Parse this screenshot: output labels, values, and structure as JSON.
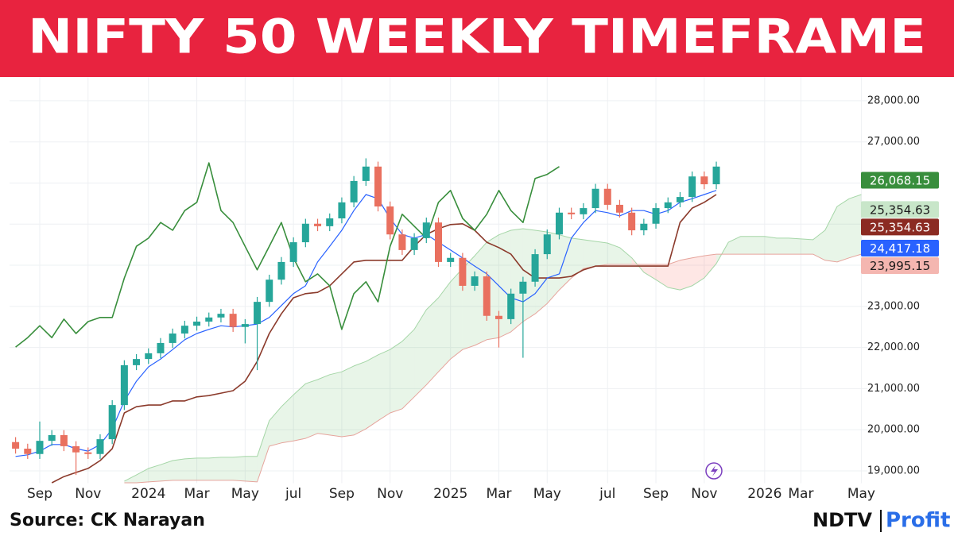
{
  "chart_data": {
    "type": "candlestick",
    "title": "NIFTY 50 WEEKLY TIMEFRAME",
    "source": "Source: CK Narayan",
    "categories": [
      null,
      null,
      "Sep",
      null,
      null,
      null,
      "Nov",
      null,
      null,
      null,
      null,
      "2024",
      null,
      null,
      null,
      "Mar",
      null,
      null,
      null,
      "May",
      null,
      null,
      null,
      "jul",
      null,
      null,
      null,
      "Sep",
      null,
      null,
      null,
      "Nov",
      null,
      null,
      null,
      null,
      "2025",
      null,
      null,
      null,
      "Mar",
      null,
      null,
      null,
      "May",
      null,
      null,
      null,
      null,
      "jul",
      null,
      null,
      null,
      "Sep",
      null,
      null,
      null,
      "Nov",
      null,
      null,
      null,
      null,
      "2026",
      null,
      null,
      "Mar",
      null,
      null,
      null,
      null,
      "May"
    ],
    "ylim": [
      18700,
      28800
    ],
    "yticks": [
      {
        "value": 19000,
        "label": "19,000.00"
      },
      {
        "value": 20000,
        "label": "20,000.00"
      },
      {
        "value": 21000,
        "label": "21,000.00"
      },
      {
        "value": 22000,
        "label": "22,000.00"
      },
      {
        "value": 23000,
        "label": "23,000.00"
      },
      {
        "value": 24000,
        "label": "24,000.00"
      },
      {
        "value": 25000,
        "label": "25,000.00"
      },
      {
        "value": 26000,
        "label": "26,000.00"
      },
      {
        "value": 27000,
        "label": "27,000.00"
      },
      {
        "value": 28000,
        "label": "28,000.00"
      }
    ],
    "grid": true,
    "up_color": "#26a69a",
    "down_color": "#e9705f",
    "open": [
      19700,
      19540,
      19410,
      19730,
      19870,
      19600,
      19450,
      19410,
      19770,
      20600,
      21570,
      21720,
      21860,
      22110,
      22340,
      22530,
      22630,
      22730,
      22820,
      22500,
      22570,
      23110,
      23650,
      24080,
      24560,
      25010,
      24950,
      25140,
      25530,
      26050,
      26400,
      25430,
      24750,
      24370,
      24660,
      25040,
      24080,
      24180,
      23500,
      23730,
      22770,
      22690,
      23310,
      23600,
      24270,
      24750,
      25280,
      25240,
      25390,
      25860,
      25470,
      25280,
      24850,
      25010,
      25390,
      25530,
      25660,
      26160,
      25970,
      null,
      null,
      null,
      null,
      null,
      null,
      null,
      null,
      null,
      null,
      null,
      null
    ],
    "high": [
      19820,
      19660,
      20200,
      19990,
      19990,
      19720,
      19570,
      19890,
      20720,
      21690,
      21840,
      21980,
      22230,
      22460,
      22650,
      22750,
      22850,
      22940,
      22940,
      22690,
      23230,
      23770,
      24200,
      24680,
      25130,
      25130,
      25260,
      25650,
      26170,
      26600,
      26520,
      25550,
      24870,
      24780,
      25160,
      25160,
      24300,
      24300,
      23850,
      23850,
      22890,
      23430,
      23720,
      24390,
      24870,
      25400,
      25400,
      25510,
      25980,
      25980,
      25590,
      25400,
      25130,
      25510,
      25650,
      25780,
      26280,
      26280,
      26520,
      null,
      null,
      null,
      null,
      null,
      null,
      null,
      null,
      null,
      null,
      null,
      null
    ],
    "low": [
      19420,
      19290,
      19290,
      19610,
      19480,
      18900,
      19290,
      19290,
      19650,
      20480,
      21450,
      21600,
      21740,
      21990,
      22220,
      22410,
      22510,
      22610,
      22380,
      22100,
      21450,
      22990,
      23530,
      23960,
      24440,
      24830,
      24830,
      25020,
      25410,
      25930,
      25310,
      24630,
      24250,
      24250,
      24540,
      23960,
      23960,
      23380,
      23380,
      22650,
      22000,
      22570,
      21750,
      23480,
      24150,
      24630,
      25120,
      25120,
      25270,
      25350,
      25160,
      24730,
      24730,
      24890,
      25270,
      25410,
      25540,
      25850,
      25850,
      null,
      null,
      null,
      null,
      null,
      null,
      null,
      null,
      null,
      null,
      null,
      null
    ],
    "close": [
      19540,
      19410,
      19730,
      19870,
      19600,
      19450,
      19410,
      19770,
      20600,
      21570,
      21720,
      21860,
      22110,
      22340,
      22530,
      22630,
      22730,
      22820,
      22500,
      22570,
      23110,
      23650,
      24080,
      24560,
      25010,
      24950,
      25140,
      25530,
      26050,
      26400,
      25430,
      24750,
      24370,
      24660,
      25040,
      24080,
      24180,
      23500,
      23730,
      22770,
      22690,
      23310,
      23600,
      24270,
      24750,
      25280,
      25240,
      25390,
      25860,
      25470,
      25280,
      24850,
      25010,
      25390,
      25530,
      25660,
      26160,
      25970,
      26400,
      null,
      null,
      null,
      null,
      null,
      null,
      null,
      null,
      null,
      null,
      null,
      null
    ],
    "lines": [
      {
        "color": "#8b3a2b",
        "values": [
          null,
          null,
          null,
          18710,
          18860,
          18960,
          19060,
          19250,
          19540,
          20410,
          20560,
          20600,
          20600,
          20700,
          20700,
          20800,
          20830,
          20890,
          20950,
          21180,
          21660,
          22340,
          22820,
          23210,
          23310,
          23340,
          23500,
          23790,
          24080,
          24120,
          24120,
          24120,
          24120,
          24460,
          24750,
          24890,
          24990,
          25010,
          24850,
          24560,
          24430,
          24270,
          23890,
          23690,
          23690,
          23690,
          23730,
          23890,
          23980,
          23980,
          23980,
          23980,
          23980,
          23980,
          23980,
          25040,
          25390,
          25530,
          25720,
          null,
          null,
          null,
          null,
          null,
          null,
          null,
          null,
          null,
          null,
          null,
          null
        ]
      },
      {
        "color": "#2962ff",
        "values": [
          19350,
          19390,
          19480,
          19640,
          19640,
          19540,
          19480,
          19640,
          20020,
          20700,
          21180,
          21530,
          21720,
          21950,
          22190,
          22340,
          22440,
          22530,
          22500,
          22530,
          22570,
          22730,
          23020,
          23310,
          23500,
          24080,
          24460,
          24850,
          25330,
          25720,
          25620,
          25140,
          24750,
          24660,
          24750,
          24560,
          24370,
          24180,
          23980,
          23790,
          23500,
          23210,
          23110,
          23310,
          23690,
          23790,
          24660,
          25040,
          25330,
          25280,
          25200,
          25330,
          25330,
          25240,
          25330,
          25530,
          25620,
          25720,
          25820,
          null,
          null,
          null,
          null,
          null,
          null,
          null,
          null,
          null,
          null,
          null,
          null
        ]
      },
      {
        "color": "#388e3c",
        "values": [
          22010,
          22240,
          22530,
          22240,
          22690,
          22340,
          22630,
          22730,
          22730,
          23690,
          24460,
          24660,
          25040,
          24850,
          25330,
          25530,
          26490,
          25330,
          25040,
          24460,
          23890,
          24460,
          25040,
          24180,
          23600,
          23790,
          23500,
          22440,
          23310,
          23600,
          23110,
          24460,
          25240,
          24950,
          24660,
          25530,
          25820,
          25140,
          24850,
          25240,
          25820,
          25330,
          25040,
          26110,
          26210,
          26400,
          null,
          null,
          null,
          null,
          null,
          null,
          null,
          null,
          null,
          null,
          null,
          null,
          null,
          null,
          null,
          null,
          null,
          null,
          null,
          null,
          null,
          null,
          null,
          null,
          null
        ]
      }
    ],
    "cloud": {
      "up_color": "#4caf50",
      "down_color": "#f44336",
      "a_color": "#a5d6a7",
      "b_color": "#e6a49c",
      "span_a": [
        null,
        null,
        null,
        null,
        null,
        null,
        null,
        null,
        null,
        18750,
        18900,
        19060,
        19150,
        19250,
        19290,
        19310,
        19310,
        19330,
        19330,
        19350,
        19350,
        20220,
        20560,
        20850,
        21120,
        21220,
        21340,
        21410,
        21550,
        21660,
        21820,
        21950,
        22150,
        22440,
        22920,
        23210,
        23600,
        23920,
        24230,
        24560,
        24740,
        24850,
        24890,
        24850,
        24810,
        24740,
        24660,
        24620,
        24580,
        24540,
        24430,
        24180,
        23830,
        23650,
        23460,
        23400,
        23500,
        23690,
        24040,
        24560,
        24700,
        24700,
        24700,
        24660,
        24660,
        24640,
        24620,
        24850,
        25430,
        25620,
        25720
      ],
      "span_b": [
        null,
        null,
        null,
        null,
        null,
        null,
        null,
        null,
        null,
        18710,
        18710,
        18730,
        18750,
        18770,
        18770,
        18770,
        18770,
        18770,
        18770,
        18750,
        18730,
        19600,
        19680,
        19730,
        19790,
        19910,
        19870,
        19830,
        19870,
        20020,
        20220,
        20410,
        20510,
        20800,
        21090,
        21410,
        21720,
        21950,
        22050,
        22190,
        22240,
        22380,
        22630,
        22820,
        23070,
        23400,
        23690,
        23920,
        23980,
        24020,
        24020,
        24020,
        24020,
        24020,
        24020,
        24120,
        24180,
        24230,
        24270,
        24270,
        24270,
        24270,
        24270,
        24270,
        24270,
        24270,
        24270,
        24120,
        24080,
        24180,
        24270
      ]
    },
    "price_labels": [
      {
        "value": 26068.15,
        "label": "26,068.15",
        "color": "#388e3c",
        "text_color": "#ffffff"
      },
      {
        "value": 24417.18,
        "label": "24,417.18",
        "color": "#2962ff",
        "text_color": "#ffffff"
      },
      {
        "value": 25354.63,
        "label": "25,354.63",
        "color": "#c8e6c9",
        "text_color": "#1b1b1b"
      },
      {
        "value": 25354.63,
        "label": "25,354.63",
        "color": "#8b2b22",
        "text_color": "#ffffff"
      },
      {
        "value": 23995.15,
        "label": "23,995.15",
        "color": "#f4b6b0",
        "text_color": "#1b1b1b"
      }
    ]
  },
  "branding": {
    "name": "NDTV",
    "product": "Profit"
  }
}
